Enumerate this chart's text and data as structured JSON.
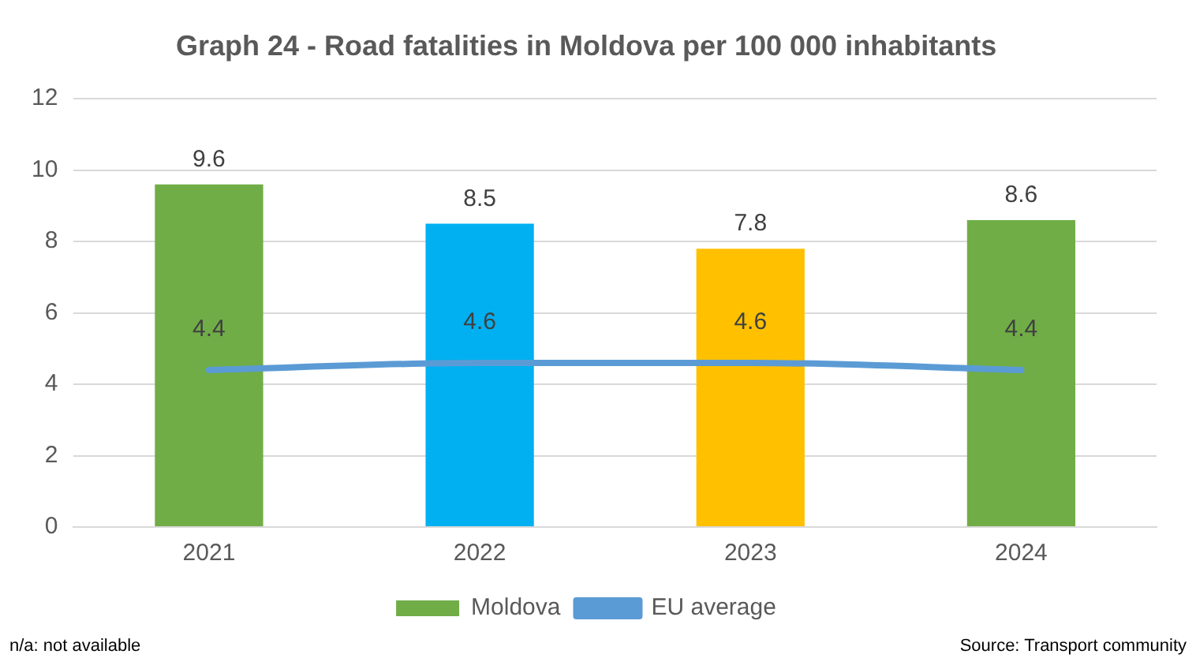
{
  "chart_data": {
    "type": "bar",
    "title": "Graph 24 - Road fatalities in Moldova per 100 000 inhabitants",
    "categories": [
      "2021",
      "2022",
      "2023",
      "2024"
    ],
    "series": [
      {
        "name": "Moldova",
        "color": "#70ad47",
        "colors": [
          "#70ad47",
          "#00b0f0",
          "#ffc000",
          "#70ad47"
        ],
        "values": [
          9.6,
          8.5,
          7.8,
          8.6
        ]
      },
      {
        "name": "EU average",
        "type": "line",
        "color": "#5b9bd5",
        "values": [
          4.4,
          4.6,
          4.6,
          4.4
        ]
      }
    ],
    "ylim": [
      0,
      12
    ],
    "yticks": [
      0,
      2,
      4,
      6,
      8,
      10,
      12
    ],
    "grid": "y",
    "legend": "bottom",
    "marker": "none",
    "data_labels": true,
    "annotations": [
      "n/a: not available",
      "Source: Transport community"
    ]
  }
}
